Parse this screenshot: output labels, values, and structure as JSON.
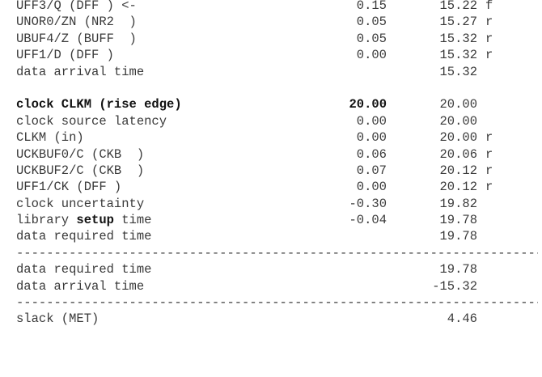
{
  "arrival_rows": [
    {
      "point": "UFF3/Q (DFF ) <-",
      "incr": "0.15",
      "path": "15.22",
      "edge": "f"
    },
    {
      "point": "UNOR0/ZN (NR2  )",
      "incr": "0.05",
      "path": "15.27",
      "edge": "r"
    },
    {
      "point": "UBUF4/Z (BUFF  )",
      "incr": "0.05",
      "path": "15.32",
      "edge": "r"
    },
    {
      "point": "UFF1/D (DFF )",
      "incr": "0.00",
      "path": "15.32",
      "edge": "r"
    },
    {
      "point": "data arrival time",
      "incr": "",
      "path": "15.32",
      "edge": ""
    }
  ],
  "required_header": {
    "point": "clock CLKM (rise edge)",
    "incr": "20.00",
    "path": "20.00",
    "edge": ""
  },
  "required_rows": [
    {
      "point": "clock source latency",
      "incr": "0.00",
      "path": "20.00",
      "edge": ""
    },
    {
      "point": "CLKM (in)",
      "incr": "0.00",
      "path": "20.00",
      "edge": "r"
    },
    {
      "point": "UCKBUF0/C (CKB  )",
      "incr": "0.06",
      "path": "20.06",
      "edge": "r"
    },
    {
      "point": "UCKBUF2/C (CKB  )",
      "incr": "0.07",
      "path": "20.12",
      "edge": "r"
    },
    {
      "point": "UFF1/CK (DFF )",
      "incr": "0.00",
      "path": "20.12",
      "edge": "r"
    },
    {
      "point": "clock uncertainty",
      "incr": "-0.30",
      "path": "19.82",
      "edge": ""
    }
  ],
  "setup_row": {
    "prefix": "library ",
    "bold": "setup",
    "suffix": " time",
    "incr": "-0.04",
    "path": "19.78",
    "edge": ""
  },
  "data_required_row": {
    "point": "data required time",
    "incr": "",
    "path": "19.78",
    "edge": ""
  },
  "separator": "---------------------------------------------------------------------------------------",
  "summary_rows": [
    {
      "point": "data required time",
      "path": "19.78"
    },
    {
      "point": "data arrival time",
      "path": "-15.32"
    }
  ],
  "slack": {
    "point": "slack (MET)",
    "path": "4.46"
  }
}
